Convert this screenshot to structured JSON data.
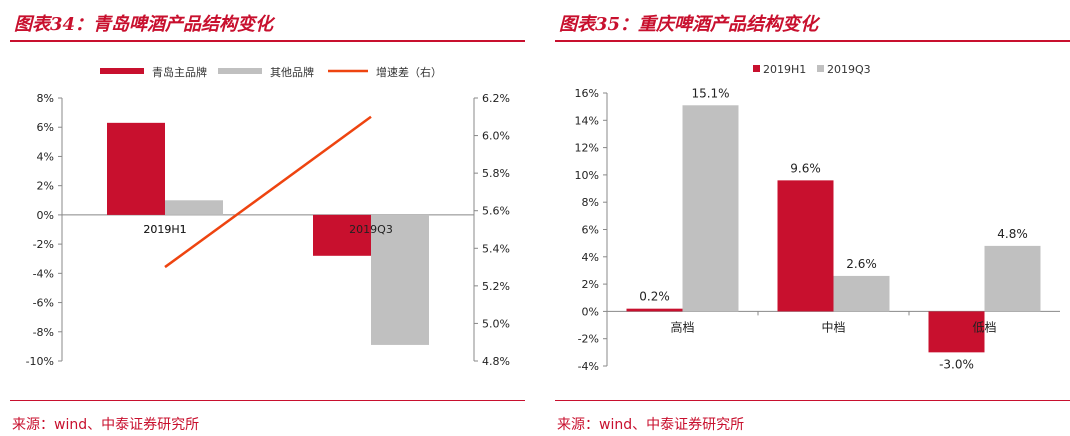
{
  "left": {
    "title": "图表34：青岛啤酒产品结构变化",
    "source": "来源：wind、中泰证券研究所"
  },
  "right": {
    "title": "图表35：重庆啤酒产品结构变化",
    "source": "来源：wind、中泰证券研究所"
  },
  "chart_data": [
    {
      "type": "bar",
      "title": "图表34：青岛啤酒产品结构变化",
      "categories": [
        "2019H1",
        "2019Q3"
      ],
      "series": [
        {
          "name": "青岛主品牌",
          "type": "bar",
          "axis": "left",
          "color": "#c8102e",
          "values": [
            6.3,
            -2.8
          ]
        },
        {
          "name": "其他品牌",
          "type": "bar",
          "axis": "left",
          "color": "#c0c0c0",
          "values": [
            1.0,
            -8.9
          ]
        },
        {
          "name": "增速差（右）",
          "type": "line",
          "axis": "right",
          "color": "#ee4410",
          "values": [
            5.3,
            6.1
          ]
        }
      ],
      "y_left": {
        "min": -10,
        "max": 8,
        "ticks": [
          "8%",
          "6%",
          "4%",
          "2%",
          "0%",
          "-2%",
          "-4%",
          "-6%",
          "-8%",
          "-10%"
        ]
      },
      "y_right": {
        "min": 4.8,
        "max": 6.2,
        "ticks": [
          "6.2%",
          "6.0%",
          "5.8%",
          "5.6%",
          "5.4%",
          "5.2%",
          "5.0%",
          "4.8%"
        ]
      },
      "legend_position": "top",
      "grid": false
    },
    {
      "type": "bar",
      "title": "图表35：重庆啤酒产品结构变化",
      "categories": [
        "高档",
        "中档",
        "低档"
      ],
      "series": [
        {
          "name": "2019H1",
          "color": "#c8102e",
          "values": [
            0.2,
            9.6,
            -3.0
          ],
          "labels": [
            "0.2%",
            "9.6%",
            "-3.0%"
          ]
        },
        {
          "name": "2019Q3",
          "color": "#c0c0c0",
          "values": [
            15.1,
            2.6,
            4.8
          ],
          "labels": [
            "15.1%",
            "2.6%",
            "4.8%"
          ]
        }
      ],
      "y_left": {
        "min": -4,
        "max": 16,
        "ticks": [
          "16%",
          "14%",
          "12%",
          "10%",
          "8%",
          "6%",
          "4%",
          "2%",
          "0%",
          "-2%",
          "-4%"
        ]
      },
      "legend_position": "top",
      "grid": false
    }
  ]
}
